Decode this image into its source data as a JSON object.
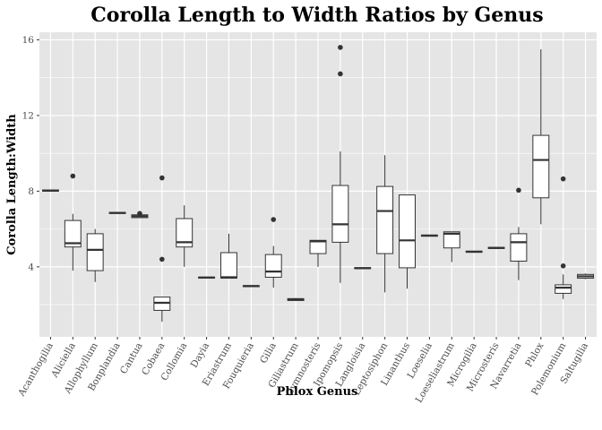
{
  "chart_data": {
    "type": "box",
    "title": "Corolla Length to Width Ratios by Genus",
    "xlabel": "Phlox Genus",
    "ylabel": "Corolla Length:Width",
    "ylim": [
      0.3,
      16.4
    ],
    "yticks": [
      4,
      8,
      12,
      16
    ],
    "grid": true,
    "legend": "none",
    "colors": {
      "panel": "#e5e5e5",
      "grid": "#ffffff",
      "box_fill": "#ffffff",
      "box_stroke": "#333333",
      "outlier": "#333333"
    },
    "categories": [
      {
        "name": "Acanthogilia",
        "min": 8.0,
        "q1": 8.0,
        "median": 8.03,
        "q3": 8.06,
        "max": 8.06,
        "outliers": []
      },
      {
        "name": "Aliciella",
        "min": 3.8,
        "q1": 5.05,
        "median": 5.25,
        "q3": 6.45,
        "max": 6.8,
        "outliers": [
          8.8
        ]
      },
      {
        "name": "Allophyllum",
        "min": 3.2,
        "q1": 3.8,
        "median": 4.9,
        "q3": 5.75,
        "max": 6.0,
        "outliers": []
      },
      {
        "name": "Bonplandia",
        "min": 6.82,
        "q1": 6.82,
        "median": 6.85,
        "q3": 6.88,
        "max": 6.88,
        "outliers": []
      },
      {
        "name": "Cantua",
        "min": 6.6,
        "q1": 6.6,
        "median": 6.68,
        "q3": 6.75,
        "max": 6.75,
        "outliers": [
          6.82
        ]
      },
      {
        "name": "Cobaea",
        "min": 1.1,
        "q1": 1.7,
        "median": 2.1,
        "q3": 2.4,
        "max": 2.4,
        "outliers": [
          4.4,
          8.7
        ]
      },
      {
        "name": "Collomia",
        "min": 4.0,
        "q1": 5.05,
        "median": 5.3,
        "q3": 6.55,
        "max": 7.25,
        "outliers": []
      },
      {
        "name": "Dayia",
        "min": 3.4,
        "q1": 3.4,
        "median": 3.43,
        "q3": 3.46,
        "max": 3.46,
        "outliers": []
      },
      {
        "name": "Eriastrum",
        "min": 3.4,
        "q1": 3.4,
        "median": 3.45,
        "q3": 4.75,
        "max": 5.75,
        "outliers": []
      },
      {
        "name": "Fouquieria",
        "min": 2.95,
        "q1": 2.95,
        "median": 2.98,
        "q3": 3.01,
        "max": 3.01,
        "outliers": []
      },
      {
        "name": "Gilia",
        "min": 2.9,
        "q1": 3.45,
        "median": 3.75,
        "q3": 4.65,
        "max": 5.1,
        "outliers": [
          6.5
        ]
      },
      {
        "name": "Giliastrum",
        "min": 2.2,
        "q1": 2.22,
        "median": 2.27,
        "q3": 2.32,
        "max": 2.35,
        "outliers": []
      },
      {
        "name": "Gymnosteris",
        "min": 4.0,
        "q1": 4.7,
        "median": 5.35,
        "q3": 5.4,
        "max": 5.4,
        "outliers": []
      },
      {
        "name": "Ipomopsis",
        "min": 3.15,
        "q1": 5.3,
        "median": 6.25,
        "q3": 8.3,
        "max": 10.1,
        "outliers": [
          14.2,
          15.6
        ]
      },
      {
        "name": "Langloisia",
        "min": 3.9,
        "q1": 3.9,
        "median": 3.93,
        "q3": 3.96,
        "max": 3.96,
        "outliers": []
      },
      {
        "name": "Leptosiphon",
        "min": 2.65,
        "q1": 4.7,
        "median": 6.95,
        "q3": 8.25,
        "max": 9.9,
        "outliers": []
      },
      {
        "name": "Linanthus",
        "min": 2.85,
        "q1": 3.95,
        "median": 5.4,
        "q3": 7.8,
        "max": 7.8,
        "outliers": []
      },
      {
        "name": "Loeselia",
        "min": 5.62,
        "q1": 5.62,
        "median": 5.65,
        "q3": 5.68,
        "max": 5.68,
        "outliers": []
      },
      {
        "name": "Loeseliastrum",
        "min": 4.25,
        "q1": 5.0,
        "median": 5.75,
        "q3": 5.85,
        "max": 5.85,
        "outliers": []
      },
      {
        "name": "Microgilia",
        "min": 4.77,
        "q1": 4.77,
        "median": 4.8,
        "q3": 4.83,
        "max": 4.83,
        "outliers": []
      },
      {
        "name": "Microsteris",
        "min": 4.97,
        "q1": 4.97,
        "median": 5.0,
        "q3": 5.03,
        "max": 5.03,
        "outliers": []
      },
      {
        "name": "Navarretia",
        "min": 3.3,
        "q1": 4.3,
        "median": 5.3,
        "q3": 5.75,
        "max": 6.1,
        "outliers": [
          8.05
        ]
      },
      {
        "name": "Phlox",
        "min": 6.25,
        "q1": 7.65,
        "median": 9.65,
        "q3": 10.95,
        "max": 15.5,
        "outliers": []
      },
      {
        "name": "Polemonium",
        "min": 2.3,
        "q1": 2.6,
        "median": 2.9,
        "q3": 3.05,
        "max": 3.6,
        "outliers": [
          4.05,
          8.65
        ]
      },
      {
        "name": "Saltugilia",
        "min": 3.35,
        "q1": 3.4,
        "median": 3.5,
        "q3": 3.6,
        "max": 3.65,
        "outliers": []
      }
    ]
  }
}
